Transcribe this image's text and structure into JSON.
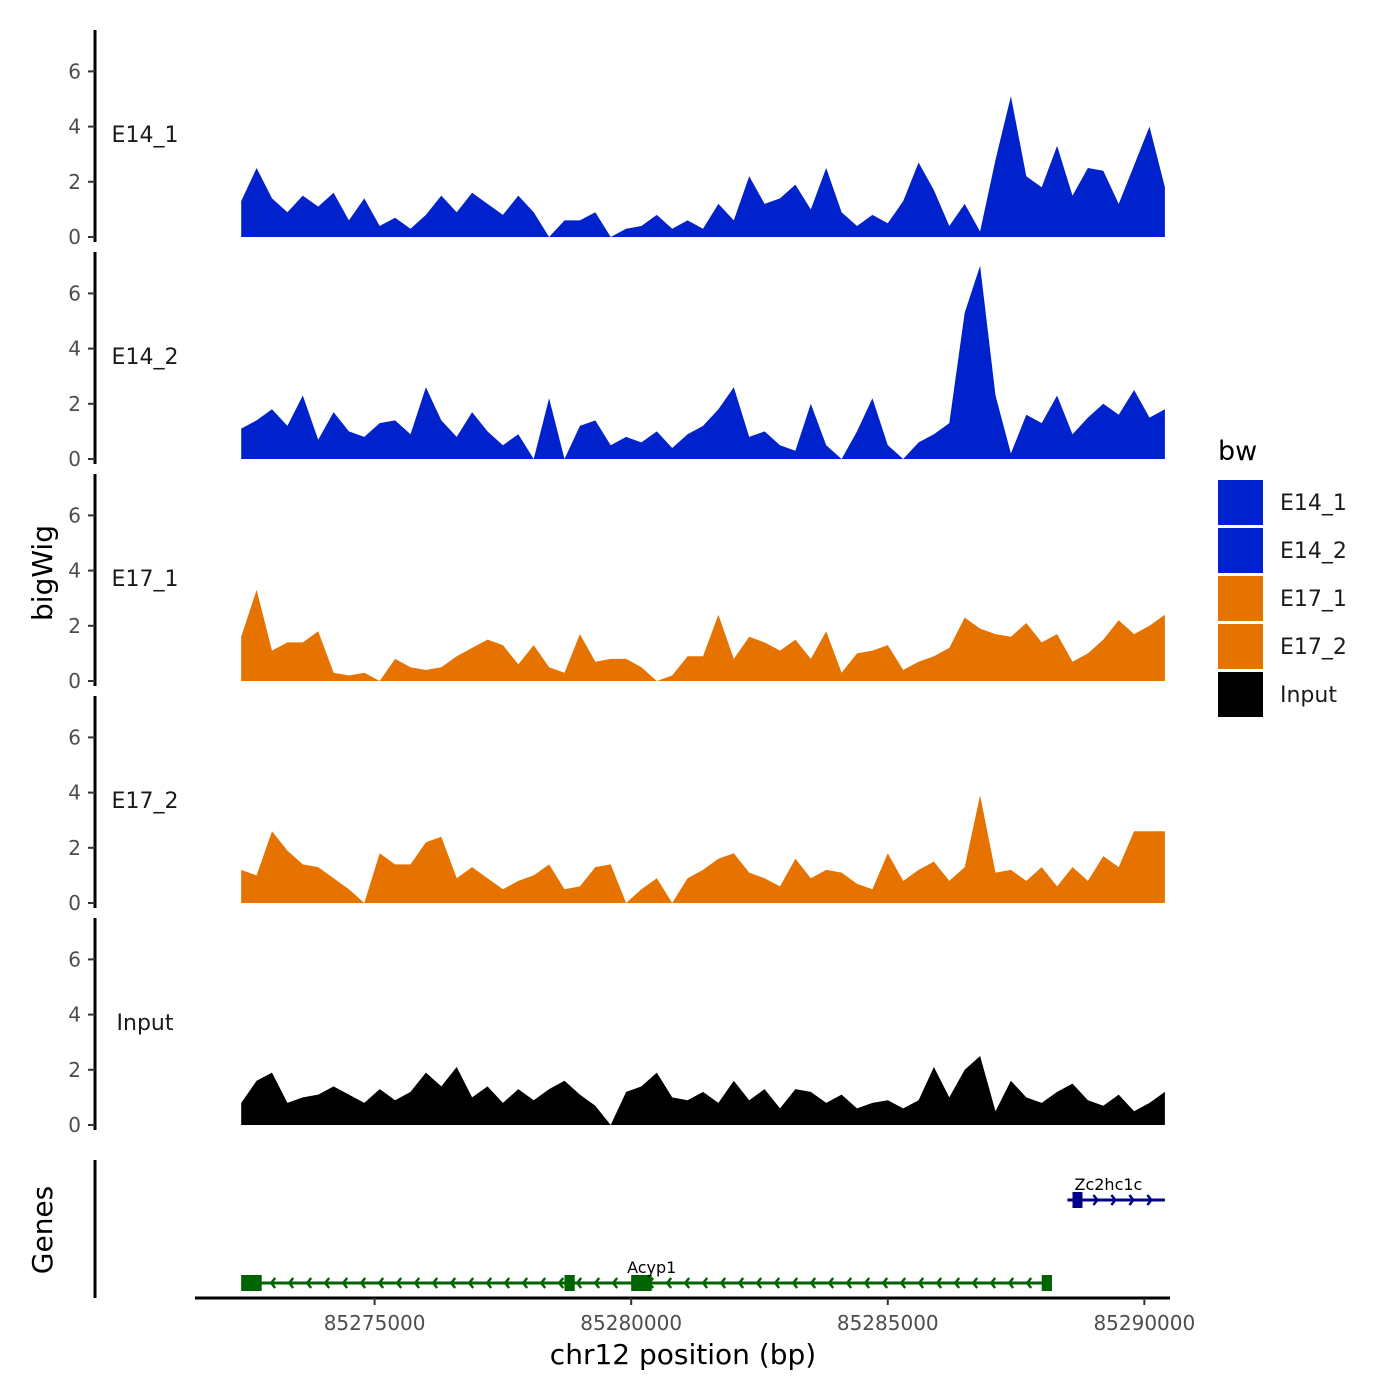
{
  "chart_data": {
    "type": "area",
    "title": "",
    "xlabel": "chr12 position (bp)",
    "ylabel": "bigWig",
    "xlim": [
      85271500,
      85290500
    ],
    "ylim": [
      0,
      7.5
    ],
    "x_ticks": [
      85275000,
      85280000,
      85285000,
      85290000
    ],
    "x_tick_labels": [
      "85275000",
      "85280000",
      "85285000",
      "85290000"
    ],
    "y_ticks": [
      0,
      2,
      4,
      6
    ],
    "y_tick_labels": [
      "0",
      "2",
      "4",
      "6"
    ],
    "x": [
      85272400,
      85272700,
      85273000,
      85273300,
      85273600,
      85273900,
      85274200,
      85274500,
      85274800,
      85275100,
      85275400,
      85275700,
      85276000,
      85276300,
      85276600,
      85276900,
      85277200,
      85277500,
      85277800,
      85278100,
      85278400,
      85278700,
      85279000,
      85279300,
      85279600,
      85279900,
      85280200,
      85280500,
      85280800,
      85281100,
      85281400,
      85281700,
      85282000,
      85282300,
      85282600,
      85282900,
      85283200,
      85283500,
      85283800,
      85284100,
      85284400,
      85284700,
      85285000,
      85285300,
      85285600,
      85285900,
      85286200,
      85286500,
      85286800,
      85287100,
      85287400,
      85287700,
      85288000,
      85288300,
      85288600,
      85288900,
      85289200,
      85289500,
      85289800,
      85290100,
      85290400
    ],
    "series": [
      {
        "name": "E14_1",
        "color": "#0022CC",
        "values": [
          1.3,
          2.5,
          1.4,
          0.9,
          1.5,
          1.1,
          1.6,
          0.6,
          1.4,
          0.4,
          0.7,
          0.3,
          0.8,
          1.5,
          0.9,
          1.6,
          1.2,
          0.8,
          1.5,
          0.9,
          0.0,
          0.6,
          0.6,
          0.9,
          0.0,
          0.3,
          0.4,
          0.8,
          0.3,
          0.6,
          0.3,
          1.2,
          0.6,
          2.2,
          1.2,
          1.4,
          1.9,
          1.0,
          2.5,
          0.9,
          0.4,
          0.8,
          0.5,
          1.3,
          2.7,
          1.7,
          0.4,
          1.2,
          0.2,
          2.8,
          5.1,
          2.2,
          1.8,
          3.3,
          1.5,
          2.5,
          2.4,
          1.2,
          2.6,
          4.0,
          1.8
        ]
      },
      {
        "name": "E14_2",
        "color": "#0022CC",
        "values": [
          1.1,
          1.4,
          1.8,
          1.2,
          2.3,
          0.7,
          1.7,
          1.0,
          0.8,
          1.3,
          1.4,
          0.9,
          2.6,
          1.4,
          0.8,
          1.7,
          1.0,
          0.5,
          0.9,
          0.0,
          2.2,
          0.0,
          1.2,
          1.4,
          0.5,
          0.8,
          0.6,
          1.0,
          0.4,
          0.9,
          1.2,
          1.8,
          2.6,
          0.8,
          1.0,
          0.5,
          0.3,
          2.0,
          0.5,
          0.0,
          1.0,
          2.2,
          0.5,
          0.0,
          0.6,
          0.9,
          1.3,
          5.3,
          7.0,
          2.3,
          0.2,
          1.6,
          1.3,
          2.3,
          0.9,
          1.5,
          2.0,
          1.6,
          2.5,
          1.5,
          1.8
        ]
      },
      {
        "name": "E17_1",
        "color": "#E67300",
        "values": [
          1.6,
          3.3,
          1.1,
          1.4,
          1.4,
          1.8,
          0.3,
          0.2,
          0.3,
          0.0,
          0.8,
          0.5,
          0.4,
          0.5,
          0.9,
          1.2,
          1.5,
          1.3,
          0.6,
          1.3,
          0.5,
          0.3,
          1.7,
          0.7,
          0.8,
          0.8,
          0.5,
          0.0,
          0.2,
          0.9,
          0.9,
          2.4,
          0.8,
          1.6,
          1.4,
          1.1,
          1.5,
          0.8,
          1.8,
          0.3,
          1.0,
          1.1,
          1.3,
          0.4,
          0.7,
          0.9,
          1.2,
          2.3,
          1.9,
          1.7,
          1.6,
          2.1,
          1.4,
          1.7,
          0.7,
          1.0,
          1.5,
          2.2,
          1.7,
          2.0,
          2.4
        ]
      },
      {
        "name": "E17_2",
        "color": "#E67300",
        "values": [
          1.2,
          1.0,
          2.6,
          1.9,
          1.4,
          1.3,
          0.9,
          0.5,
          0.0,
          1.8,
          1.4,
          1.4,
          2.2,
          2.4,
          0.9,
          1.3,
          0.9,
          0.5,
          0.8,
          1.0,
          1.4,
          0.5,
          0.6,
          1.3,
          1.4,
          0.0,
          0.5,
          0.9,
          0.0,
          0.9,
          1.2,
          1.6,
          1.8,
          1.1,
          0.9,
          0.6,
          1.6,
          0.9,
          1.2,
          1.1,
          0.7,
          0.5,
          1.8,
          0.8,
          1.2,
          1.5,
          0.8,
          1.3,
          3.9,
          1.1,
          1.2,
          0.8,
          1.3,
          0.6,
          1.3,
          0.8,
          1.7,
          1.3,
          2.6,
          2.6,
          2.6
        ]
      },
      {
        "name": "Input",
        "color": "#000000",
        "values": [
          0.8,
          1.6,
          1.9,
          0.8,
          1.0,
          1.1,
          1.4,
          1.1,
          0.8,
          1.3,
          0.9,
          1.2,
          1.9,
          1.4,
          2.1,
          1.0,
          1.4,
          0.8,
          1.3,
          0.9,
          1.3,
          1.6,
          1.1,
          0.7,
          0.0,
          1.2,
          1.4,
          1.9,
          1.0,
          0.9,
          1.2,
          0.8,
          1.6,
          0.9,
          1.3,
          0.6,
          1.3,
          1.2,
          0.8,
          1.1,
          0.6,
          0.8,
          0.9,
          0.6,
          0.9,
          2.1,
          1.0,
          2.0,
          2.5,
          0.5,
          1.6,
          1.0,
          0.8,
          1.2,
          1.5,
          0.9,
          0.7,
          1.1,
          0.5,
          0.8,
          1.2
        ]
      }
    ],
    "track_labels": [
      "E14_1",
      "E14_2",
      "E17_1",
      "E17_2",
      "Input"
    ],
    "genes_track_label": "Genes",
    "genes": [
      {
        "name": "Acyp1",
        "color": "#006400",
        "strand": "-",
        "start": 85272400,
        "end": 85288200,
        "exons": [
          [
            85272400,
            85272800
          ],
          [
            85278700,
            85278900
          ],
          [
            85280000,
            85280400
          ],
          [
            85288000,
            85288200
          ]
        ]
      },
      {
        "name": "Zc2hc1c",
        "color": "#00008B",
        "strand": "+",
        "start": 85288500,
        "end": 85290400,
        "exons": [
          [
            85288600,
            85288750
          ]
        ]
      }
    ],
    "legend": {
      "title": "bw",
      "position": "right",
      "entries": [
        {
          "label": "E14_1",
          "color": "#0022CC"
        },
        {
          "label": "E14_2",
          "color": "#0022CC"
        },
        {
          "label": "E17_1",
          "color": "#E67300"
        },
        {
          "label": "E17_2",
          "color": "#E67300"
        },
        {
          "label": "Input",
          "color": "#000000"
        }
      ]
    }
  }
}
